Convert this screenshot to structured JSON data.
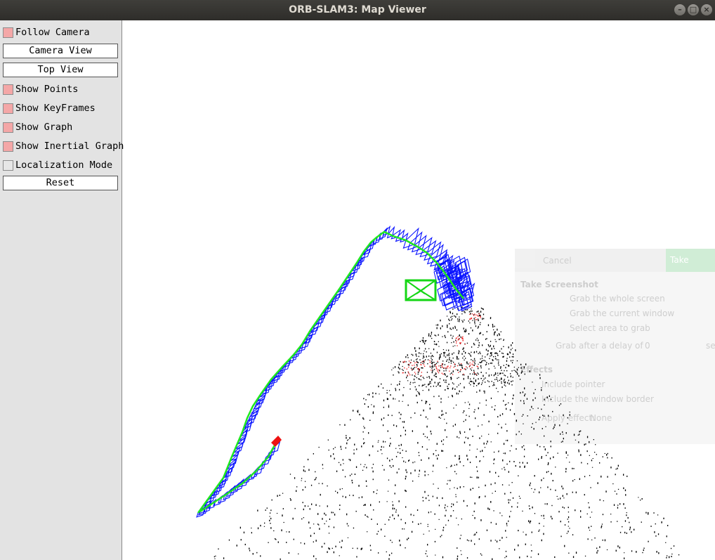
{
  "window": {
    "title": "ORB-SLAM3: Map Viewer",
    "controls": [
      "–",
      "□",
      "×"
    ]
  },
  "panel": {
    "follow_camera": {
      "label": "Follow Camera",
      "checked": true
    },
    "camera_view": "Camera View",
    "top_view": "Top View",
    "show_points": {
      "label": "Show Points",
      "checked": true
    },
    "show_keyframes": {
      "label": "Show KeyFrames",
      "checked": true
    },
    "show_graph": {
      "label": "Show Graph",
      "checked": true
    },
    "show_inertial_graph": {
      "label": "Show Inertial Graph",
      "checked": true
    },
    "localization_mode": {
      "label": "Localization Mode",
      "checked": false
    },
    "reset": "Reset"
  },
  "screenshot_dialog": {
    "cancel": "Cancel",
    "take": "Take Screensh",
    "heading": "Take Screenshot",
    "opt_whole": "Grab the whole screen",
    "opt_window": "Grab the current window",
    "opt_area": "Select area to grab",
    "delay_label": "Grab after a delay of",
    "delay_value": "0",
    "delay_unit": "se",
    "effects": "Effects",
    "include_pointer": "Include pointer",
    "include_border": "Include the window border",
    "apply_effect": "Apply effect:",
    "effect_value": "None"
  },
  "colors": {
    "keyframe": "#0a14ff",
    "graph": "#1fe81f",
    "current_camera": "#15d615",
    "map_point": "#000000",
    "reference_point": "#ee1111",
    "checkbox_on": "#f4a7a7",
    "panel_bg": "#e3e3e3"
  }
}
